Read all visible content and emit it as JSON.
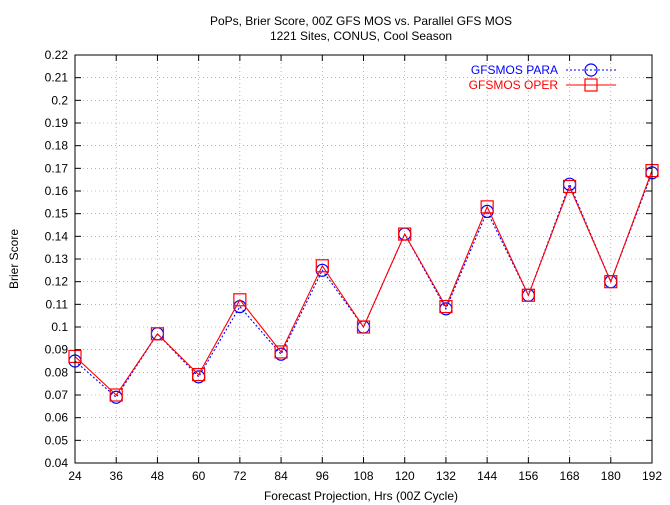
{
  "chart_data": {
    "type": "line",
    "title": "PoPs, Brier Score, 00Z GFS MOS vs. Parallel GFS MOS",
    "subtitle": "1221 Sites, CONUS, Cool Season",
    "xlabel": "Forecast Projection, Hrs (00Z Cycle)",
    "ylabel": "Brier Score",
    "x": [
      24,
      36,
      48,
      60,
      72,
      84,
      96,
      108,
      120,
      132,
      144,
      156,
      168,
      180,
      192
    ],
    "xlim": [
      24,
      192
    ],
    "ylim": [
      0.04,
      0.22
    ],
    "y_ticks": [
      "0.04",
      "0.05",
      "0.06",
      "0.07",
      "0.08",
      "0.09",
      "0.1",
      "0.11",
      "0.12",
      "0.13",
      "0.14",
      "0.15",
      "0.16",
      "0.17",
      "0.18",
      "0.19",
      "0.2",
      "0.21",
      "0.22"
    ],
    "x_ticks": [
      "24",
      "36",
      "48",
      "60",
      "72",
      "84",
      "96",
      "108",
      "120",
      "132",
      "144",
      "156",
      "168",
      "180",
      "192"
    ],
    "grid": true,
    "legend_position": "top-right",
    "series": [
      {
        "name": "GFSMOS PARA",
        "color": "#0000ff",
        "marker": "circle",
        "line": "dotted",
        "values": [
          0.085,
          0.069,
          0.097,
          0.078,
          0.109,
          0.088,
          0.125,
          0.1,
          0.141,
          0.108,
          0.151,
          0.114,
          0.163,
          0.12,
          0.168
        ]
      },
      {
        "name": "GFSMOS OPER",
        "color": "#ff0000",
        "marker": "square",
        "line": "solid",
        "values": [
          0.087,
          0.07,
          0.097,
          0.079,
          0.112,
          0.089,
          0.127,
          0.1,
          0.141,
          0.109,
          0.153,
          0.114,
          0.162,
          0.12,
          0.169
        ]
      }
    ]
  }
}
